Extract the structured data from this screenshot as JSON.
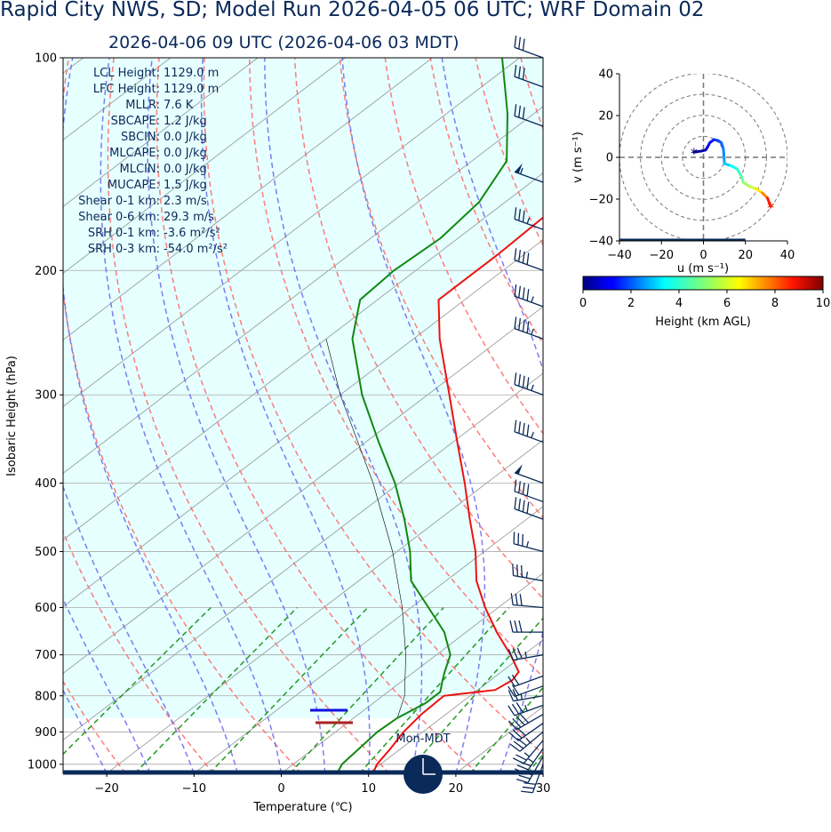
{
  "header": {
    "title": "Rapid City NWS, SD; Model Run 2026-04-05 06 UTC; WRF Domain 02",
    "subtitle": "2026-04-06 09 UTC  (2026-04-06 03 MDT)"
  },
  "colors": {
    "temperature": "#ee1111",
    "dewpoint": "#118811",
    "dry_adiabat": "#ff6666",
    "moist_adiabat": "#6666ee",
    "mixing_ratio": "#229922",
    "isotherm": "#888888",
    "cape_fill": "#e6ffff",
    "wind_barb": "#0a2a5a",
    "lcl_marker": "#1111dd",
    "lfc_marker": "#aa2222"
  },
  "chart_data": [
    {
      "type": "line",
      "name": "skewt",
      "xlabel": "Temperature (℃)",
      "ylabel": "Isobaric Height (hPa)",
      "xlim": [
        -25,
        30
      ],
      "ylim": [
        1030,
        100
      ],
      "y_scale": "log",
      "skew": true,
      "grid": true,
      "x_ticks": [
        "−20",
        "−10",
        "0",
        "10",
        "20",
        "30"
      ],
      "y_ticks": [
        "100",
        "200",
        "300",
        "400",
        "500",
        "600",
        "700",
        "800",
        "900",
        "1000"
      ],
      "indices": [
        {
          "label": "LCL Height:",
          "value": "1129.0 m"
        },
        {
          "label": "LFC Height:",
          "value": "1129.0 m"
        },
        {
          "label": "MLLR:",
          "value": "7.6 K"
        },
        {
          "label": "SBCAPE:",
          "value": "1.2 J/kg"
        },
        {
          "label": "SBCIN:",
          "value": "0.0 J/kg"
        },
        {
          "label": "MLCAPE:",
          "value": "0.0 J/kg"
        },
        {
          "label": "MLCIN:",
          "value": "0.0 J/kg"
        },
        {
          "label": "MUCAPE:",
          "value": "1.5 J/kg"
        },
        {
          "label": "Shear 0-1 km:",
          "value": "2.3 m/s"
        },
        {
          "label": "Shear 0-6 km:",
          "value": "29.3 m/s"
        },
        {
          "label": "SRH 0-1 km:",
          "value": "-3.6 m²/s²"
        },
        {
          "label": "SRH 0-3 km:",
          "value": "-54.0 m²/s²"
        }
      ],
      "series": [
        {
          "key": "temperature",
          "points": [
            [
              1030,
              10.5
            ],
            [
              1000,
              9.6
            ],
            [
              950,
              8.8
            ],
            [
              900,
              7.8
            ],
            [
              850,
              7.2
            ],
            [
              800,
              7.0
            ],
            [
              785,
              12.0
            ],
            [
              760,
              12.5
            ],
            [
              740,
              12.0
            ],
            [
              700,
              8.5
            ],
            [
              650,
              3.5
            ],
            [
              600,
              -1.5
            ],
            [
              550,
              -6.5
            ],
            [
              500,
              -11.0
            ],
            [
              450,
              -16.5
            ],
            [
              400,
              -22.5
            ],
            [
              350,
              -29.5
            ],
            [
              300,
              -37.5
            ],
            [
              250,
              -47.0
            ],
            [
              220,
              -53.0
            ],
            [
              190,
              -53.0
            ],
            [
              160,
              -53.5
            ],
            [
              130,
              -56.0
            ],
            [
              110,
              -59.0
            ],
            [
              100,
              -61.0
            ]
          ]
        },
        {
          "key": "dewpoint",
          "points": [
            [
              1030,
              6.4
            ],
            [
              1000,
              5.6
            ],
            [
              950,
              5.2
            ],
            [
              900,
              4.8
            ],
            [
              860,
              5.0
            ],
            [
              820,
              6.0
            ],
            [
              790,
              6.0
            ],
            [
              760,
              4.5
            ],
            [
              740,
              3.5
            ],
            [
              700,
              1.6
            ],
            [
              650,
              -2.5
            ],
            [
              600,
              -8.0
            ],
            [
              550,
              -14.0
            ],
            [
              500,
              -18.5
            ],
            [
              450,
              -24.0
            ],
            [
              400,
              -30.5
            ],
            [
              350,
              -38.5
            ],
            [
              300,
              -47.5
            ],
            [
              250,
              -57.0
            ],
            [
              220,
              -62.0
            ],
            [
              200,
              -62.5
            ],
            [
              180,
              -62.0
            ],
            [
              160,
              -63.0
            ],
            [
              140,
              -66.0
            ],
            [
              120,
              -73.0
            ],
            [
              100,
              -82.0
            ]
          ]
        },
        {
          "key": "parcel",
          "points": [
            [
              860,
              5.0
            ],
            [
              800,
              2.5
            ],
            [
              700,
              -3.5
            ],
            [
              600,
              -11.0
            ],
            [
              500,
              -20.5
            ],
            [
              400,
              -33.0
            ],
            [
              300,
              -50.0
            ],
            [
              250,
              -60.0
            ]
          ]
        }
      ],
      "lcl_hpa": 866,
      "lfc_hpa": 882,
      "wind_barbs": [
        {
          "p": 1000,
          "dir": 200,
          "spd": 30
        },
        {
          "p": 975,
          "dir": 210,
          "spd": 30
        },
        {
          "p": 950,
          "dir": 215,
          "spd": 35
        },
        {
          "p": 925,
          "dir": 220,
          "spd": 25
        },
        {
          "p": 900,
          "dir": 230,
          "spd": 35
        },
        {
          "p": 875,
          "dir": 235,
          "spd": 30
        },
        {
          "p": 850,
          "dir": 240,
          "spd": 40
        },
        {
          "p": 825,
          "dir": 250,
          "spd": 35
        },
        {
          "p": 800,
          "dir": 260,
          "spd": 25
        },
        {
          "p": 775,
          "dir": 250,
          "spd": 20
        },
        {
          "p": 750,
          "dir": 250,
          "spd": 20
        },
        {
          "p": 700,
          "dir": 260,
          "spd": 35
        },
        {
          "p": 650,
          "dir": 270,
          "spd": 30
        },
        {
          "p": 600,
          "dir": 275,
          "spd": 30
        },
        {
          "p": 550,
          "dir": 280,
          "spd": 35
        },
        {
          "p": 500,
          "dir": 285,
          "spd": 35
        },
        {
          "p": 450,
          "dir": 290,
          "spd": 40
        },
        {
          "p": 425,
          "dir": 290,
          "spd": 40
        },
        {
          "p": 400,
          "dir": 290,
          "spd": 50
        },
        {
          "p": 350,
          "dir": 290,
          "spd": 45
        },
        {
          "p": 300,
          "dir": 290,
          "spd": 45
        },
        {
          "p": 250,
          "dir": 290,
          "spd": 45
        },
        {
          "p": 225,
          "dir": 290,
          "spd": 45
        },
        {
          "p": 200,
          "dir": 290,
          "spd": 40
        },
        {
          "p": 175,
          "dir": 290,
          "spd": 35
        },
        {
          "p": 150,
          "dir": 290,
          "spd": 55
        },
        {
          "p": 125,
          "dir": 290,
          "spd": 30
        },
        {
          "p": 110,
          "dir": 290,
          "spd": 30
        },
        {
          "p": 100,
          "dir": 290,
          "spd": 30
        }
      ],
      "clock_label": "Mon-MDT"
    },
    {
      "type": "line",
      "name": "hodograph",
      "xlabel": "u (m s$^{-1}$)",
      "ylabel": "v (m s$^{-1}$)",
      "xlim": [
        -40,
        40
      ],
      "ylim": [
        -40,
        40
      ],
      "x_ticks": [
        "−40",
        "−20",
        "0",
        "20",
        "40"
      ],
      "y_ticks": [
        "40",
        "20",
        "0",
        "−20",
        "−40"
      ],
      "ring_speeds": [
        10,
        20,
        30,
        40
      ],
      "points": [
        {
          "u": -4.5,
          "v": 2.5,
          "h": 0.0
        },
        {
          "u": -1.0,
          "v": 3.0,
          "h": 0.3
        },
        {
          "u": 1.0,
          "v": 3.5,
          "h": 0.6
        },
        {
          "u": 2.0,
          "v": 5.0,
          "h": 0.9
        },
        {
          "u": 3.0,
          "v": 7.0,
          "h": 1.2
        },
        {
          "u": 5.0,
          "v": 8.5,
          "h": 1.5
        },
        {
          "u": 7.0,
          "v": 8.0,
          "h": 1.8
        },
        {
          "u": 8.5,
          "v": 7.0,
          "h": 2.1
        },
        {
          "u": 9.5,
          "v": 4.0,
          "h": 2.4
        },
        {
          "u": 9.8,
          "v": 0.0,
          "h": 2.7
        },
        {
          "u": 10.0,
          "v": -3.0,
          "h": 3.0
        },
        {
          "u": 13.0,
          "v": -4.0,
          "h": 3.5
        },
        {
          "u": 16.0,
          "v": -5.5,
          "h": 4.0
        },
        {
          "u": 18.0,
          "v": -9.0,
          "h": 4.5
        },
        {
          "u": 19.0,
          "v": -12.0,
          "h": 5.0
        },
        {
          "u": 22.0,
          "v": -14.0,
          "h": 5.5
        },
        {
          "u": 25.0,
          "v": -15.0,
          "h": 6.0
        },
        {
          "u": 28.0,
          "v": -17.0,
          "h": 7.0
        },
        {
          "u": 30.5,
          "v": -19.5,
          "h": 8.0
        },
        {
          "u": 32.0,
          "v": -23.5,
          "h": 9.0
        }
      ],
      "colorbar": {
        "label": "Height (km AGL)",
        "ticks": [
          "0",
          "2",
          "4",
          "6",
          "8",
          "10"
        ],
        "vmin": 0,
        "vmax": 10,
        "colormap": "jet"
      }
    }
  ]
}
